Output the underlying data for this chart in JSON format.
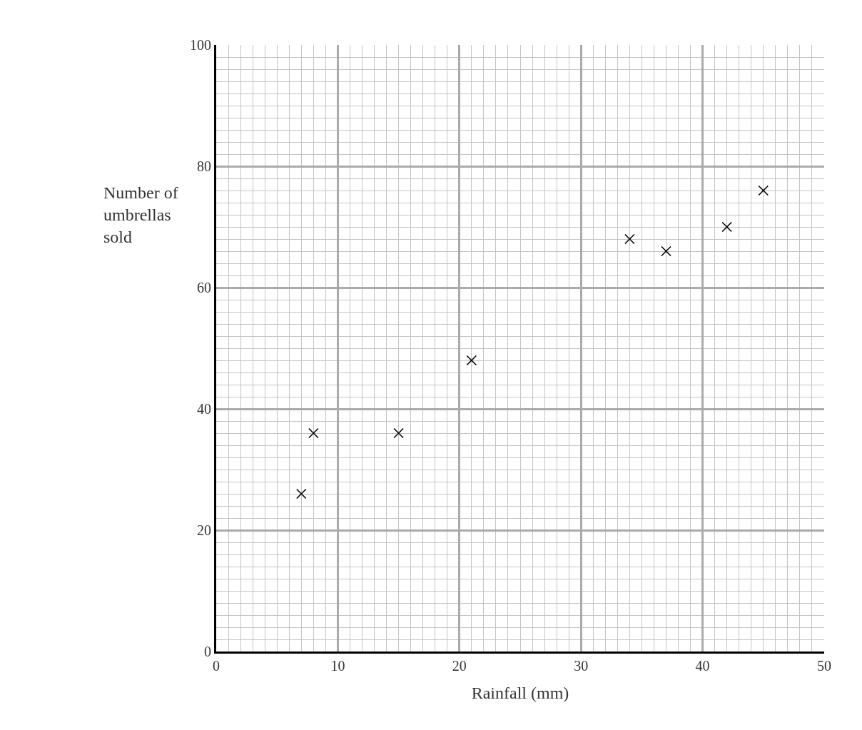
{
  "chart_data": {
    "type": "scatter",
    "xlabel": "Rainfall (mm)",
    "ylabel": "Number of umbrellas sold",
    "x": [
      7,
      8,
      15,
      21,
      34,
      37,
      42,
      45
    ],
    "series": [
      {
        "color": "#000000",
        "values": [
          26,
          36,
          36,
          48,
          68,
          66,
          70,
          76
        ]
      }
    ],
    "xlim": [
      0,
      50
    ],
    "ylim": [
      0,
      100
    ],
    "xticks": [
      0,
      10,
      20,
      30,
      40,
      50
    ],
    "yticks": [
      0,
      20,
      40,
      60,
      80,
      100
    ],
    "grid": true,
    "marker": "cross",
    "legend": false
  }
}
